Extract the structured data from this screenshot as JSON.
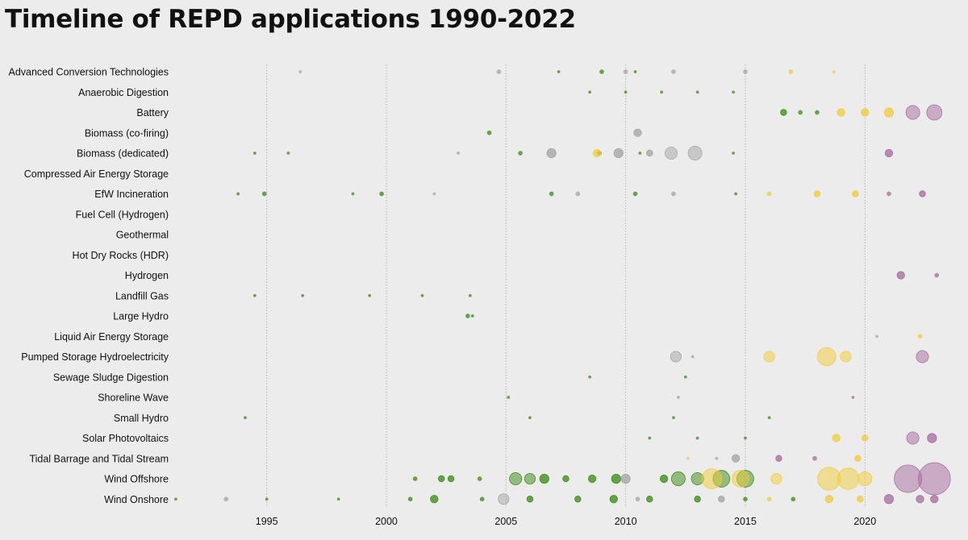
{
  "title": "Timeline of REPD applications 1990-2022",
  "colors": {
    "background": "#ececec",
    "operational": "#3a8a12",
    "in_planning": "#f2cb3a",
    "refused_abandoned": "#a3a3a3",
    "recent": "#a66a9e"
  },
  "chart_data": {
    "type": "scatter",
    "title": "Timeline of REPD applications 1990-2022",
    "xlabel": "",
    "ylabel": "",
    "xlim": [
      1991,
      2023.8
    ],
    "x_ticks": [
      1995,
      2000,
      2005,
      2010,
      2015,
      2020
    ],
    "x_tick_labels": [
      "1995",
      "2000",
      "2005",
      "2010",
      "2015",
      "2020"
    ],
    "grid": "vertical dotted",
    "categories": [
      "Advanced Conversion Technologies",
      "Anaerobic Digestion",
      "Battery",
      "Biomass (co-firing)",
      "Biomass (dedicated)",
      "Compressed Air Energy Storage",
      "EfW Incineration",
      "Fuel Cell (Hydrogen)",
      "Geothermal",
      "Hot Dry Rocks (HDR)",
      "Hydrogen",
      "Landfill Gas",
      "Large Hydro",
      "Liquid Air Energy Storage",
      "Pumped Storage Hydroelectricity",
      "Sewage Sludge Digestion",
      "Shoreline Wave",
      "Small Hydro",
      "Solar Photovoltaics",
      "Tidal Barrage and Tidal Stream",
      "Wind Offshore",
      "Wind Onshore"
    ],
    "series": [
      {
        "color": "operational",
        "points": [
          {
            "category": "Advanced Conversion Technologies",
            "x": 2007.2,
            "size": 2
          },
          {
            "category": "Advanced Conversion Technologies",
            "x": 2009.0,
            "size": 3
          },
          {
            "category": "Advanced Conversion Technologies",
            "x": 2010.4,
            "size": 2
          },
          {
            "category": "Anaerobic Digestion",
            "x": 2008.5,
            "size": 2
          },
          {
            "category": "Anaerobic Digestion",
            "x": 2010.0,
            "size": 2
          },
          {
            "category": "Anaerobic Digestion",
            "x": 2011.5,
            "size": 2
          },
          {
            "category": "Anaerobic Digestion",
            "x": 2013.0,
            "size": 2
          },
          {
            "category": "Anaerobic Digestion",
            "x": 2014.5,
            "size": 2
          },
          {
            "category": "Battery",
            "x": 2016.6,
            "size": 4
          },
          {
            "category": "Battery",
            "x": 2017.3,
            "size": 3
          },
          {
            "category": "Battery",
            "x": 2018.0,
            "size": 3
          },
          {
            "category": "Biomass (co-firing)",
            "x": 2004.3,
            "size": 3
          },
          {
            "category": "Biomass (dedicated)",
            "x": 1994.5,
            "size": 2
          },
          {
            "category": "Biomass (dedicated)",
            "x": 1995.9,
            "size": 2
          },
          {
            "category": "Biomass (dedicated)",
            "x": 2005.6,
            "size": 3
          },
          {
            "category": "Biomass (dedicated)",
            "x": 2008.9,
            "size": 3
          },
          {
            "category": "Biomass (dedicated)",
            "x": 2010.6,
            "size": 2
          },
          {
            "category": "Biomass (dedicated)",
            "x": 2014.5,
            "size": 2
          },
          {
            "category": "EfW Incineration",
            "x": 1993.8,
            "size": 2
          },
          {
            "category": "EfW Incineration",
            "x": 1994.9,
            "size": 3
          },
          {
            "category": "EfW Incineration",
            "x": 1998.6,
            "size": 2
          },
          {
            "category": "EfW Incineration",
            "x": 1999.8,
            "size": 3
          },
          {
            "category": "EfW Incineration",
            "x": 2006.9,
            "size": 3
          },
          {
            "category": "EfW Incineration",
            "x": 2010.4,
            "size": 3
          },
          {
            "category": "EfW Incineration",
            "x": 2014.6,
            "size": 2
          },
          {
            "category": "Landfill Gas",
            "x": 1994.5,
            "size": 2
          },
          {
            "category": "Landfill Gas",
            "x": 1996.5,
            "size": 2
          },
          {
            "category": "Landfill Gas",
            "x": 1999.3,
            "size": 2
          },
          {
            "category": "Landfill Gas",
            "x": 2001.5,
            "size": 2
          },
          {
            "category": "Landfill Gas",
            "x": 2003.5,
            "size": 2
          },
          {
            "category": "Large Hydro",
            "x": 2003.4,
            "size": 3
          },
          {
            "category": "Large Hydro",
            "x": 2003.6,
            "size": 2
          },
          {
            "category": "Sewage Sludge Digestion",
            "x": 2008.5,
            "size": 2
          },
          {
            "category": "Sewage Sludge Digestion",
            "x": 2012.5,
            "size": 2
          },
          {
            "category": "Shoreline Wave",
            "x": 2005.1,
            "size": 2
          },
          {
            "category": "Small Hydro",
            "x": 1994.1,
            "size": 2
          },
          {
            "category": "Small Hydro",
            "x": 2006.0,
            "size": 2
          },
          {
            "category": "Small Hydro",
            "x": 2012.0,
            "size": 2
          },
          {
            "category": "Small Hydro",
            "x": 2016.0,
            "size": 2
          },
          {
            "category": "Solar Photovoltaics",
            "x": 2011.0,
            "size": 2
          },
          {
            "category": "Solar Photovoltaics",
            "x": 2013.0,
            "size": 2
          },
          {
            "category": "Solar Photovoltaics",
            "x": 2015.0,
            "size": 2
          },
          {
            "category": "Wind Offshore",
            "x": 2001.2,
            "size": 3
          },
          {
            "category": "Wind Offshore",
            "x": 2002.3,
            "size": 4
          },
          {
            "category": "Wind Offshore",
            "x": 2002.7,
            "size": 4
          },
          {
            "category": "Wind Offshore",
            "x": 2003.9,
            "size": 3
          },
          {
            "category": "Wind Offshore",
            "x": 2005.4,
            "size": 8
          },
          {
            "category": "Wind Offshore",
            "x": 2006.0,
            "size": 7
          },
          {
            "category": "Wind Offshore",
            "x": 2006.6,
            "size": 6
          },
          {
            "category": "Wind Offshore",
            "x": 2007.5,
            "size": 4
          },
          {
            "category": "Wind Offshore",
            "x": 2008.6,
            "size": 5
          },
          {
            "category": "Wind Offshore",
            "x": 2009.6,
            "size": 6
          },
          {
            "category": "Wind Offshore",
            "x": 2011.6,
            "size": 5
          },
          {
            "category": "Wind Offshore",
            "x": 2012.2,
            "size": 9
          },
          {
            "category": "Wind Offshore",
            "x": 2013.0,
            "size": 8
          },
          {
            "category": "Wind Offshore",
            "x": 2014.0,
            "size": 11
          },
          {
            "category": "Wind Offshore",
            "x": 2015.0,
            "size": 11
          },
          {
            "category": "Wind Onshore",
            "x": 1991.2,
            "size": 2
          },
          {
            "category": "Wind Onshore",
            "x": 1995.0,
            "size": 2
          },
          {
            "category": "Wind Onshore",
            "x": 1998.0,
            "size": 2
          },
          {
            "category": "Wind Onshore",
            "x": 2001.0,
            "size": 3
          },
          {
            "category": "Wind Onshore",
            "x": 2002.0,
            "size": 5
          },
          {
            "category": "Wind Onshore",
            "x": 2004.0,
            "size": 3
          },
          {
            "category": "Wind Onshore",
            "x": 2006.0,
            "size": 4
          },
          {
            "category": "Wind Onshore",
            "x": 2008.0,
            "size": 4
          },
          {
            "category": "Wind Onshore",
            "x": 2009.5,
            "size": 5
          },
          {
            "category": "Wind Onshore",
            "x": 2011.0,
            "size": 4
          },
          {
            "category": "Wind Onshore",
            "x": 2013.0,
            "size": 4
          },
          {
            "category": "Wind Onshore",
            "x": 2015.0,
            "size": 3
          },
          {
            "category": "Wind Onshore",
            "x": 2017.0,
            "size": 3
          }
        ]
      },
      {
        "color": "refused_abandoned",
        "points": [
          {
            "category": "Advanced Conversion Technologies",
            "x": 1996.4,
            "size": 2
          },
          {
            "category": "Advanced Conversion Technologies",
            "x": 2004.7,
            "size": 3
          },
          {
            "category": "Advanced Conversion Technologies",
            "x": 2010.0,
            "size": 3
          },
          {
            "category": "Advanced Conversion Technologies",
            "x": 2012.0,
            "size": 3
          },
          {
            "category": "Advanced Conversion Technologies",
            "x": 2015.0,
            "size": 3
          },
          {
            "category": "Biomass (co-firing)",
            "x": 2010.5,
            "size": 5
          },
          {
            "category": "Biomass (dedicated)",
            "x": 2006.9,
            "size": 6
          },
          {
            "category": "Biomass (dedicated)",
            "x": 2009.7,
            "size": 6
          },
          {
            "category": "Biomass (dedicated)",
            "x": 2011.9,
            "size": 8
          },
          {
            "category": "Biomass (dedicated)",
            "x": 2012.9,
            "size": 9
          },
          {
            "category": "Biomass (dedicated)",
            "x": 2011.0,
            "size": 4
          },
          {
            "category": "Biomass (dedicated)",
            "x": 2003.0,
            "size": 2
          },
          {
            "category": "EfW Incineration",
            "x": 2002.0,
            "size": 2
          },
          {
            "category": "EfW Incineration",
            "x": 2008.0,
            "size": 3
          },
          {
            "category": "EfW Incineration",
            "x": 2012.0,
            "size": 3
          },
          {
            "category": "Pumped Storage Hydroelectricity",
            "x": 2012.1,
            "size": 7
          },
          {
            "category": "Pumped Storage Hydroelectricity",
            "x": 2012.8,
            "size": 2
          },
          {
            "category": "Liquid Air Energy Storage",
            "x": 2020.5,
            "size": 2
          },
          {
            "category": "Shoreline Wave",
            "x": 2012.2,
            "size": 2
          },
          {
            "category": "Tidal Barrage and Tidal Stream",
            "x": 2014.6,
            "size": 5
          },
          {
            "category": "Tidal Barrage and Tidal Stream",
            "x": 2013.8,
            "size": 2
          },
          {
            "category": "Wind Offshore",
            "x": 2010.0,
            "size": 6
          },
          {
            "category": "Wind Onshore",
            "x": 1993.3,
            "size": 3
          },
          {
            "category": "Wind Onshore",
            "x": 2004.9,
            "size": 7
          },
          {
            "category": "Wind Onshore",
            "x": 2010.5,
            "size": 3
          },
          {
            "category": "Wind Onshore",
            "x": 2014.0,
            "size": 4
          }
        ]
      },
      {
        "color": "in_planning",
        "points": [
          {
            "category": "Advanced Conversion Technologies",
            "x": 2016.9,
            "size": 3
          },
          {
            "category": "Advanced Conversion Technologies",
            "x": 2018.7,
            "size": 2
          },
          {
            "category": "Battery",
            "x": 2019.0,
            "size": 5
          },
          {
            "category": "Battery",
            "x": 2020.0,
            "size": 5
          },
          {
            "category": "Battery",
            "x": 2021.0,
            "size": 6
          },
          {
            "category": "Biomass (dedicated)",
            "x": 2008.8,
            "size": 5
          },
          {
            "category": "EfW Incineration",
            "x": 2016.0,
            "size": 3
          },
          {
            "category": "EfW Incineration",
            "x": 2018.0,
            "size": 4
          },
          {
            "category": "EfW Incineration",
            "x": 2019.6,
            "size": 4
          },
          {
            "category": "Pumped Storage Hydroelectricity",
            "x": 2016.0,
            "size": 7
          },
          {
            "category": "Pumped Storage Hydroelectricity",
            "x": 2018.4,
            "size": 12
          },
          {
            "category": "Pumped Storage Hydroelectricity",
            "x": 2019.2,
            "size": 7
          },
          {
            "category": "Liquid Air Energy Storage",
            "x": 2022.3,
            "size": 3
          },
          {
            "category": "Solar Photovoltaics",
            "x": 2018.8,
            "size": 5
          },
          {
            "category": "Solar Photovoltaics",
            "x": 2020.0,
            "size": 4
          },
          {
            "category": "Tidal Barrage and Tidal Stream",
            "x": 2019.7,
            "size": 4
          },
          {
            "category": "Tidal Barrage and Tidal Stream",
            "x": 2012.6,
            "size": 2
          },
          {
            "category": "Wind Offshore",
            "x": 2013.6,
            "size": 13
          },
          {
            "category": "Wind Offshore",
            "x": 2014.8,
            "size": 11
          },
          {
            "category": "Wind Offshore",
            "x": 2016.3,
            "size": 7
          },
          {
            "category": "Wind Offshore",
            "x": 2018.5,
            "size": 15
          },
          {
            "category": "Wind Offshore",
            "x": 2019.3,
            "size": 14
          },
          {
            "category": "Wind Offshore",
            "x": 2020.0,
            "size": 9
          },
          {
            "category": "Wind Onshore",
            "x": 2016.0,
            "size": 3
          },
          {
            "category": "Wind Onshore",
            "x": 2018.5,
            "size": 5
          },
          {
            "category": "Wind Onshore",
            "x": 2019.8,
            "size": 4
          }
        ]
      },
      {
        "color": "recent",
        "points": [
          {
            "category": "Battery",
            "x": 2022.0,
            "size": 9
          },
          {
            "category": "Battery",
            "x": 2022.9,
            "size": 10
          },
          {
            "category": "Biomass (dedicated)",
            "x": 2021.0,
            "size": 5
          },
          {
            "category": "EfW Incineration",
            "x": 2021.0,
            "size": 3
          },
          {
            "category": "EfW Incineration",
            "x": 2022.4,
            "size": 4
          },
          {
            "category": "Hydrogen",
            "x": 2021.5,
            "size": 5
          },
          {
            "category": "Hydrogen",
            "x": 2023.0,
            "size": 3
          },
          {
            "category": "Pumped Storage Hydroelectricity",
            "x": 2022.4,
            "size": 8
          },
          {
            "category": "Solar Photovoltaics",
            "x": 2022.0,
            "size": 8
          },
          {
            "category": "Solar Photovoltaics",
            "x": 2022.8,
            "size": 6
          },
          {
            "category": "Tidal Barrage and Tidal Stream",
            "x": 2016.4,
            "size": 4
          },
          {
            "category": "Tidal Barrage and Tidal Stream",
            "x": 2017.9,
            "size": 3
          },
          {
            "category": "Shoreline Wave",
            "x": 2019.5,
            "size": 2
          },
          {
            "category": "Wind Offshore",
            "x": 2021.8,
            "size": 18
          },
          {
            "category": "Wind Offshore",
            "x": 2022.9,
            "size": 21
          },
          {
            "category": "Wind Onshore",
            "x": 2021.0,
            "size": 6
          },
          {
            "category": "Wind Onshore",
            "x": 2022.3,
            "size": 5
          },
          {
            "category": "Wind Onshore",
            "x": 2022.9,
            "size": 5
          }
        ]
      }
    ]
  }
}
